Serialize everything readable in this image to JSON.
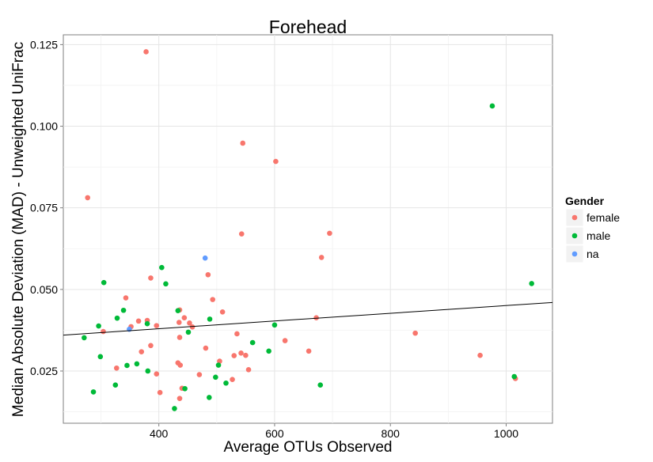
{
  "chart_data": {
    "type": "scatter",
    "title": "Forehead",
    "xlabel": "Average OTUs Observed",
    "ylabel": "Median Absolute Deviation (MAD) - Unweighted UniFrac",
    "xlim": [
      235,
      1080
    ],
    "ylim": [
      0.009,
      0.128
    ],
    "x_ticks": [
      400,
      600,
      800,
      1000
    ],
    "x_tick_labels": [
      "400",
      "600",
      "800",
      "1000"
    ],
    "y_ticks": [
      0.025,
      0.05,
      0.075,
      0.1,
      0.125
    ],
    "y_tick_labels": [
      "0.025",
      "0.050",
      "0.075",
      "0.100",
      "0.125"
    ],
    "grid": true,
    "legend": {
      "title": "Gender",
      "position": "right",
      "entries": [
        {
          "label": "female",
          "color": "#F8766D"
        },
        {
          "label": "male",
          "color": "#00BA38"
        },
        {
          "label": "na",
          "color": "#619CFF"
        }
      ]
    },
    "trend_line": {
      "x": [
        235,
        1080
      ],
      "y": [
        0.036,
        0.046
      ]
    },
    "series": [
      {
        "name": "female",
        "color": "#F8766D",
        "points": [
          [
            378,
            0.1228
          ],
          [
            545,
            0.0948
          ],
          [
            602,
            0.0892
          ],
          [
            277,
            0.0781
          ],
          [
            543,
            0.067
          ],
          [
            695,
            0.0672
          ],
          [
            681,
            0.0598
          ],
          [
            386,
            0.0535
          ],
          [
            485,
            0.0545
          ],
          [
            343,
            0.0474
          ],
          [
            493,
            0.0469
          ],
          [
            510,
            0.0431
          ],
          [
            436,
            0.0437
          ],
          [
            672,
            0.0413
          ],
          [
            444,
            0.0413
          ],
          [
            365,
            0.0403
          ],
          [
            380,
            0.0405
          ],
          [
            453,
            0.0397
          ],
          [
            396,
            0.0389
          ],
          [
            435,
            0.0399
          ],
          [
            352,
            0.0386
          ],
          [
            458,
            0.0385
          ],
          [
            304,
            0.0371
          ],
          [
            535,
            0.0364
          ],
          [
            843,
            0.0366
          ],
          [
            436,
            0.0353
          ],
          [
            618,
            0.0343
          ],
          [
            386,
            0.0328
          ],
          [
            481,
            0.032
          ],
          [
            370,
            0.0309
          ],
          [
            659,
            0.0311
          ],
          [
            542,
            0.0305
          ],
          [
            530,
            0.0297
          ],
          [
            550,
            0.0298
          ],
          [
            955,
            0.0298
          ],
          [
            505,
            0.028
          ],
          [
            433,
            0.0275
          ],
          [
            437,
            0.0268
          ],
          [
            327,
            0.0259
          ],
          [
            555,
            0.0254
          ],
          [
            396,
            0.0241
          ],
          [
            470,
            0.0239
          ],
          [
            527,
            0.0224
          ],
          [
            1016,
            0.0227
          ],
          [
            440,
            0.0197
          ],
          [
            402,
            0.0184
          ],
          [
            436,
            0.0166
          ]
        ]
      },
      {
        "name": "male",
        "color": "#00BA38",
        "points": [
          [
            976,
            0.1062
          ],
          [
            405,
            0.0567
          ],
          [
            305,
            0.0521
          ],
          [
            412,
            0.0517
          ],
          [
            1044,
            0.0518
          ],
          [
            339,
            0.0436
          ],
          [
            433,
            0.0435
          ],
          [
            328,
            0.0412
          ],
          [
            488,
            0.0409
          ],
          [
            380,
            0.0395
          ],
          [
            296,
            0.0388
          ],
          [
            600,
            0.0391
          ],
          [
            451,
            0.0369
          ],
          [
            271,
            0.0352
          ],
          [
            562,
            0.0337
          ],
          [
            590,
            0.0311
          ],
          [
            299,
            0.0294
          ],
          [
            362,
            0.0272
          ],
          [
            345,
            0.0267
          ],
          [
            503,
            0.0268
          ],
          [
            381,
            0.025
          ],
          [
            498,
            0.0231
          ],
          [
            1014,
            0.0233
          ],
          [
            516,
            0.0213
          ],
          [
            325,
            0.0207
          ],
          [
            679,
            0.0207
          ],
          [
            445,
            0.0196
          ],
          [
            287,
            0.0186
          ],
          [
            487,
            0.0169
          ],
          [
            427,
            0.0135
          ]
        ]
      },
      {
        "name": "na",
        "color": "#619CFF",
        "points": [
          [
            480,
            0.0596
          ],
          [
            349,
            0.0378
          ]
        ]
      }
    ]
  }
}
